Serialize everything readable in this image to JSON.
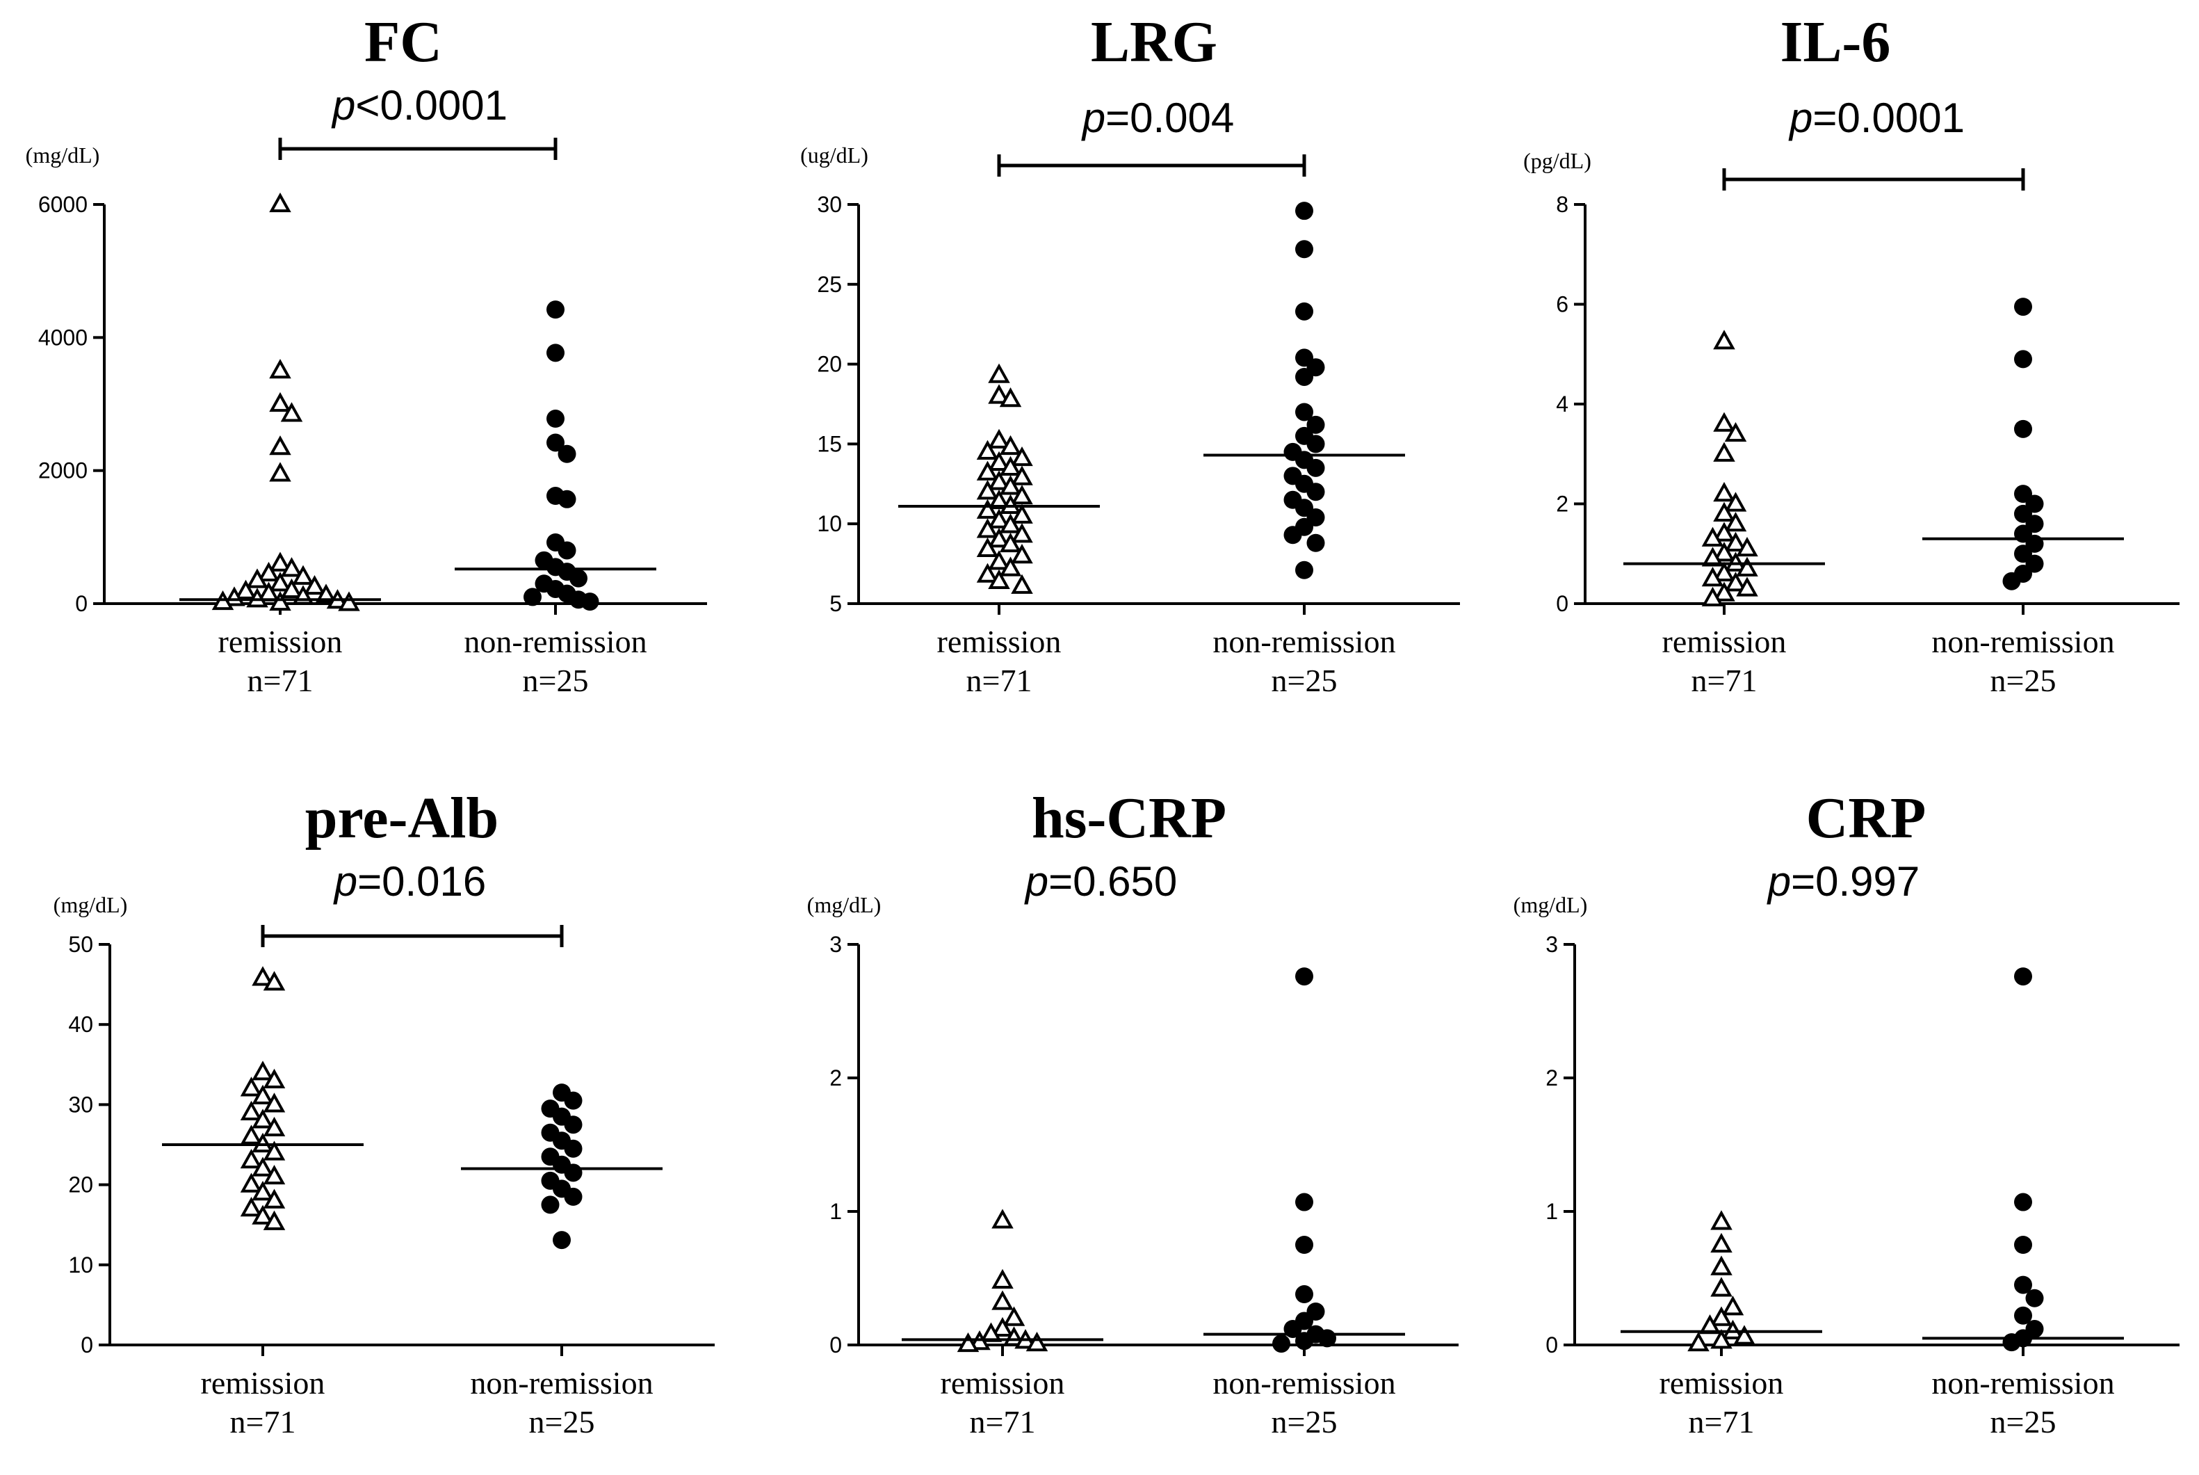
{
  "figure": {
    "marker_colors": {
      "remission": "#000000",
      "non_remission": "#000000"
    }
  },
  "chart_data": [
    {
      "type": "scatter",
      "title": "FC",
      "unit": "(mg/dL)",
      "p_prefix": "p",
      "p_text": "<0.0001",
      "bracket": true,
      "yticks": [
        0,
        2000,
        4000,
        6000
      ],
      "ylim": [
        0,
        6000
      ],
      "categories": [
        "remission",
        "non-remission"
      ],
      "n_labels": [
        "n=71",
        "n=25"
      ],
      "series": [
        {
          "name": "remission",
          "marker": "open-triangle",
          "median": 60,
          "values": [
            6000,
            3500,
            3000,
            2850,
            2350,
            1950,
            600,
            520,
            450,
            400,
            350,
            300,
            250,
            200,
            180,
            150,
            120,
            100,
            80,
            60,
            40,
            20,
            10,
            5
          ]
        },
        {
          "name": "non-remission",
          "marker": "filled-circle",
          "median": 520,
          "values": [
            4420,
            3770,
            2780,
            2420,
            2250,
            1620,
            1570,
            920,
            800,
            650,
            550,
            480,
            380,
            300,
            220,
            150,
            100,
            60,
            30
          ]
        }
      ]
    },
    {
      "type": "scatter",
      "title": "LRG",
      "unit": "(ug/dL)",
      "p_prefix": "p",
      "p_text": "=0.004",
      "bracket": true,
      "yticks": [
        5,
        10,
        15,
        20,
        25,
        30
      ],
      "ylim": [
        5,
        30
      ],
      "categories": [
        "remission",
        "non-remission"
      ],
      "n_labels": [
        "n=71",
        "n=25"
      ],
      "series": [
        {
          "name": "remission",
          "marker": "open-triangle",
          "median": 11.1,
          "values": [
            19.3,
            18.0,
            17.8,
            15.2,
            14.8,
            14.5,
            14.1,
            13.8,
            13.5,
            13.2,
            12.9,
            12.6,
            12.3,
            12.0,
            11.7,
            11.4,
            11.1,
            10.8,
            10.5,
            10.2,
            9.9,
            9.6,
            9.3,
            9.0,
            8.7,
            8.4,
            8.0,
            7.6,
            7.2,
            6.8,
            6.4,
            6.1
          ]
        },
        {
          "name": "non-remission",
          "marker": "filled-circle",
          "median": 14.3,
          "values": [
            29.6,
            27.2,
            23.3,
            20.4,
            19.8,
            19.2,
            17.0,
            16.2,
            15.5,
            15.0,
            14.5,
            14.0,
            13.5,
            13.0,
            12.5,
            12.0,
            11.5,
            11.0,
            10.4,
            9.8,
            9.3,
            8.8,
            7.1
          ]
        }
      ]
    },
    {
      "type": "scatter",
      "title": "IL-6",
      "unit": "(pg/dL)",
      "p_prefix": "p",
      "p_text": "=0.0001",
      "bracket": true,
      "yticks": [
        0,
        2,
        4,
        6,
        8
      ],
      "ylim": [
        0,
        8
      ],
      "categories": [
        "remission",
        "non-remission"
      ],
      "n_labels": [
        "n=71",
        "n=25"
      ],
      "series": [
        {
          "name": "remission",
          "marker": "open-triangle",
          "median": 0.8,
          "values": [
            5.25,
            3.6,
            3.4,
            3.0,
            2.2,
            2.0,
            1.8,
            1.6,
            1.4,
            1.3,
            1.2,
            1.1,
            1.0,
            0.9,
            0.8,
            0.7,
            0.6,
            0.5,
            0.4,
            0.3,
            0.2,
            0.1
          ]
        },
        {
          "name": "non-remission",
          "marker": "filled-circle",
          "median": 1.3,
          "values": [
            5.95,
            4.9,
            3.5,
            2.2,
            2.0,
            1.8,
            1.6,
            1.4,
            1.2,
            1.0,
            0.8,
            0.6,
            0.45
          ]
        }
      ]
    },
    {
      "type": "scatter",
      "title": "pre-Alb",
      "unit": "(mg/dL)",
      "p_prefix": "p",
      "p_text": "=0.016",
      "bracket": true,
      "yticks": [
        0,
        10,
        20,
        30,
        40,
        50
      ],
      "ylim": [
        0,
        50
      ],
      "categories": [
        "remission",
        "non-remission"
      ],
      "n_labels": [
        "n=71",
        "n=25"
      ],
      "series": [
        {
          "name": "remission",
          "marker": "open-triangle",
          "median": 25,
          "values": [
            45.8,
            45.2,
            34,
            33,
            32,
            31,
            30,
            29,
            28,
            27,
            26,
            25,
            24,
            23,
            22,
            21,
            20,
            19,
            18,
            17,
            16,
            15.3
          ]
        },
        {
          "name": "non-remission",
          "marker": "filled-circle",
          "median": 22,
          "values": [
            31.5,
            30.5,
            29.5,
            28.5,
            27.5,
            26.5,
            25.5,
            24.5,
            23.5,
            22.5,
            21.5,
            20.5,
            19.5,
            18.5,
            17.5,
            13.1
          ]
        }
      ]
    },
    {
      "type": "scatter",
      "title": "hs-CRP",
      "unit": "(mg/dL)",
      "p_prefix": "p",
      "p_text": "=0.650",
      "bracket": false,
      "yticks": [
        0,
        1,
        2,
        3
      ],
      "ylim": [
        0,
        3
      ],
      "categories": [
        "remission",
        "non-remission"
      ],
      "n_labels": [
        "n=71",
        "n=25"
      ],
      "series": [
        {
          "name": "remission",
          "marker": "open-triangle",
          "median": 0.04,
          "values": [
            0.93,
            0.48,
            0.32,
            0.2,
            0.12,
            0.08,
            0.05,
            0.03,
            0.02,
            0.01,
            0.005
          ]
        },
        {
          "name": "non-remission",
          "marker": "filled-circle",
          "median": 0.08,
          "values": [
            2.76,
            1.07,
            0.75,
            0.38,
            0.25,
            0.18,
            0.12,
            0.08,
            0.05,
            0.03,
            0.01
          ]
        }
      ]
    },
    {
      "type": "scatter",
      "title": "CRP",
      "unit": "(mg/dL)",
      "p_prefix": "p",
      "p_text": "=0.997",
      "bracket": false,
      "yticks": [
        0,
        1,
        2,
        3
      ],
      "ylim": [
        0,
        3
      ],
      "categories": [
        "remission",
        "non-remission"
      ],
      "n_labels": [
        "n=71",
        "n=25"
      ],
      "series": [
        {
          "name": "remission",
          "marker": "open-triangle",
          "median": 0.1,
          "values": [
            0.92,
            0.75,
            0.58,
            0.42,
            0.28,
            0.2,
            0.14,
            0.1,
            0.06,
            0.03,
            0.01
          ]
        },
        {
          "name": "non-remission",
          "marker": "filled-circle",
          "median": 0.05,
          "values": [
            2.76,
            1.07,
            0.75,
            0.45,
            0.35,
            0.22,
            0.12,
            0.05,
            0.02
          ]
        }
      ]
    }
  ]
}
